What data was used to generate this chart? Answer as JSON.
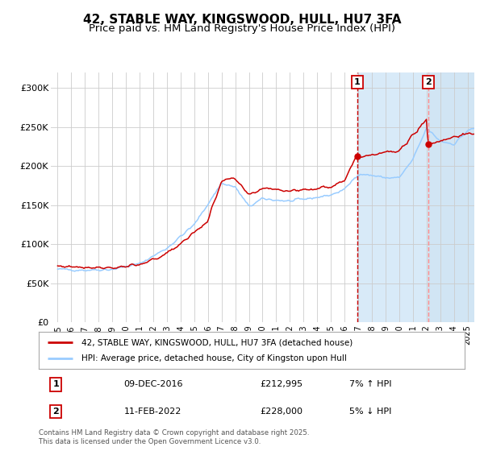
{
  "title": "42, STABLE WAY, KINGSWOOD, HULL, HU7 3FA",
  "subtitle": "Price paid vs. HM Land Registry's House Price Index (HPI)",
  "xlim": [
    1994.5,
    2025.5
  ],
  "ylim": [
    0,
    320000
  ],
  "yticks": [
    0,
    50000,
    100000,
    150000,
    200000,
    250000,
    300000
  ],
  "ytick_labels": [
    "£0",
    "£50K",
    "£100K",
    "£150K",
    "£200K",
    "£250K",
    "£300K"
  ],
  "xtick_labels": [
    "1995",
    "1996",
    "1997",
    "1998",
    "1999",
    "2000",
    "2001",
    "2002",
    "2003",
    "2004",
    "2005",
    "2006",
    "2007",
    "2008",
    "2009",
    "2010",
    "2011",
    "2012",
    "2013",
    "2014",
    "2015",
    "2016",
    "2017",
    "2018",
    "2019",
    "2020",
    "2021",
    "2022",
    "2023",
    "2024",
    "2025"
  ],
  "line1_color": "#cc0000",
  "line2_color": "#99ccff",
  "sale1_x": 2016.92,
  "sale1_y": 212995,
  "sale2_x": 2022.11,
  "sale2_y": 228000,
  "vline1_x": 2016.92,
  "vline2_x": 2022.11,
  "shade1_color": "#d8eaf8",
  "shade2_color": "#c8dff0",
  "legend_label1": "42, STABLE WAY, KINGSWOOD, HULL, HU7 3FA (detached house)",
  "legend_label2": "HPI: Average price, detached house, City of Kingston upon Hull",
  "note1_num": "1",
  "note1_date": "09-DEC-2016",
  "note1_price": "£212,995",
  "note1_hpi": "7% ↑ HPI",
  "note2_num": "2",
  "note2_date": "11-FEB-2022",
  "note2_price": "£228,000",
  "note2_hpi": "5% ↓ HPI",
  "footer": "Contains HM Land Registry data © Crown copyright and database right 2025.\nThis data is licensed under the Open Government Licence v3.0.",
  "background_color": "#ffffff",
  "grid_color": "#cccccc",
  "title_fontsize": 11,
  "subtitle_fontsize": 9.5,
  "box_edge_color": "#cc0000"
}
